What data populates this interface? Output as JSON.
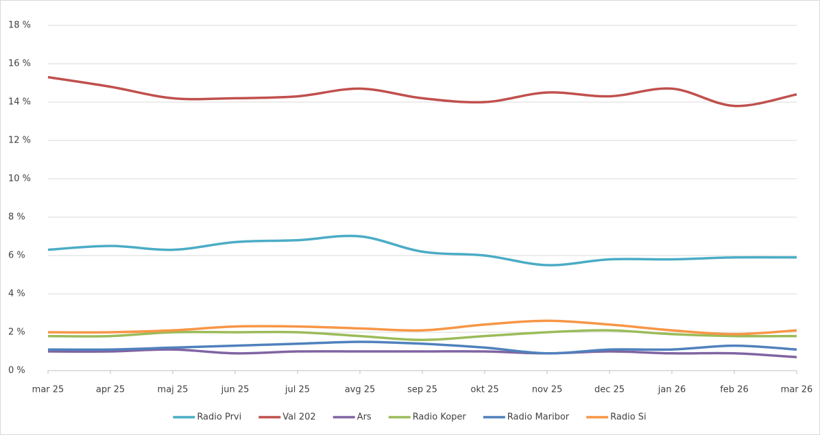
{
  "chart_data": {
    "type": "line",
    "categories": [
      "mar 25",
      "apr 25",
      "maj 25",
      "jun 25",
      "jul 25",
      "avg 25",
      "sep 25",
      "okt 25",
      "nov 25",
      "dec 25",
      "jan 26",
      "feb 26",
      "mar 26"
    ],
    "series": [
      {
        "name": "Radio Prvi",
        "color": "#4bacc6",
        "values": [
          6.3,
          6.5,
          6.3,
          6.7,
          6.8,
          7.0,
          6.2,
          6.0,
          5.5,
          5.8,
          5.8,
          5.9,
          5.9
        ]
      },
      {
        "name": "Val 202",
        "color": "#c0504d",
        "values": [
          15.3,
          14.8,
          14.2,
          14.2,
          14.3,
          14.7,
          14.2,
          14.0,
          14.5,
          14.3,
          14.7,
          13.8,
          14.4
        ]
      },
      {
        "name": "Ars",
        "color": "#8064a2",
        "values": [
          1.0,
          1.0,
          1.1,
          0.9,
          1.0,
          1.0,
          1.0,
          1.0,
          0.9,
          1.0,
          0.9,
          0.9,
          0.7
        ]
      },
      {
        "name": "Radio Koper",
        "color": "#9bbb59",
        "values": [
          1.8,
          1.8,
          2.0,
          2.0,
          2.0,
          1.8,
          1.6,
          1.8,
          2.0,
          2.1,
          1.9,
          1.8,
          1.8
        ]
      },
      {
        "name": "Radio Maribor",
        "color": "#4f81bd",
        "values": [
          1.1,
          1.1,
          1.2,
          1.3,
          1.4,
          1.5,
          1.4,
          1.2,
          0.9,
          1.1,
          1.1,
          1.3,
          1.1
        ]
      },
      {
        "name": "Radio Si",
        "color": "#f79646",
        "values": [
          2.0,
          2.0,
          2.1,
          2.3,
          2.3,
          2.2,
          2.1,
          2.4,
          2.6,
          2.4,
          2.1,
          1.9,
          2.1
        ]
      }
    ],
    "ylim": [
      0,
      18
    ],
    "yticks": [
      {
        "value": 0,
        "label": "0 %"
      },
      {
        "value": 2,
        "label": "2 %"
      },
      {
        "value": 4,
        "label": "4 %"
      },
      {
        "value": 6,
        "label": "6 %"
      },
      {
        "value": 8,
        "label": "8 %"
      },
      {
        "value": 10,
        "label": "10 %"
      },
      {
        "value": 12,
        "label": "12 %"
      },
      {
        "value": 14,
        "label": "14 %"
      },
      {
        "value": 16,
        "label": "16 %"
      },
      {
        "value": 18,
        "label": "18 %"
      }
    ],
    "grid": true,
    "legend": "bottom"
  }
}
